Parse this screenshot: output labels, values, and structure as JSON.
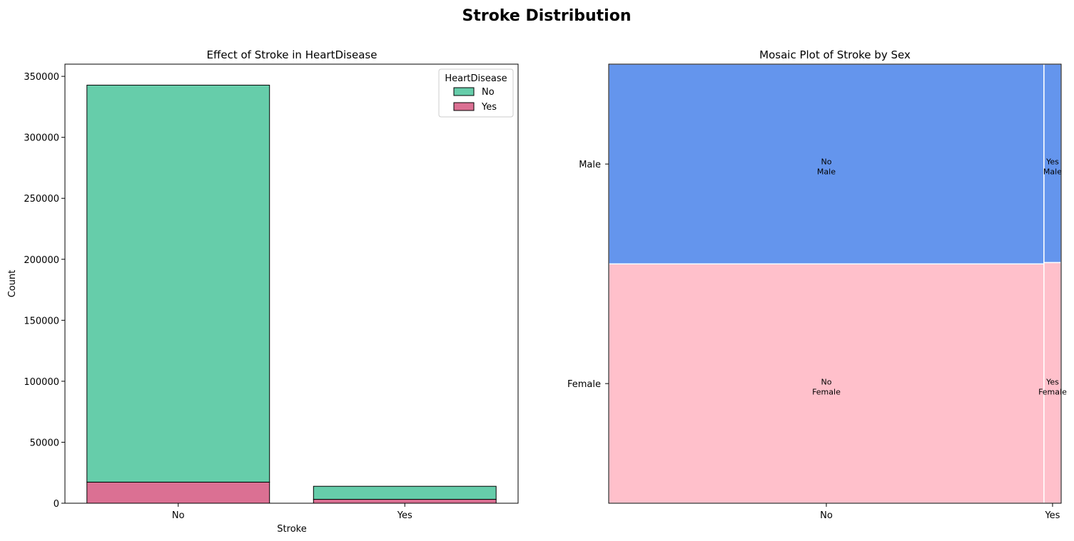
{
  "suptitle": "Stroke Distribution",
  "chart_data": [
    {
      "type": "bar",
      "stacked": true,
      "title": "Effect of Stroke in HeartDisease",
      "xlabel": "Stroke",
      "ylabel": "Count",
      "categories": [
        "No",
        "Yes"
      ],
      "ylim": [
        0,
        360000
      ],
      "yticks": [
        0,
        50000,
        100000,
        150000,
        200000,
        250000,
        300000,
        350000
      ],
      "legend": {
        "title": "HeartDisease",
        "placement": "top-right"
      },
      "series": [
        {
          "name": "No",
          "values": [
            325500,
            10700
          ],
          "color": "#66cdaa"
        },
        {
          "name": "Yes",
          "values": [
            17300,
            3200
          ],
          "color": "#db7093"
        }
      ]
    },
    {
      "type": "mosaic",
      "title": "Mosaic Plot of Stroke by Sex",
      "x_categories": [
        "No",
        "Yes"
      ],
      "y_categories": [
        "Male",
        "Female"
      ],
      "x_fractions": [
        0.962,
        0.038
      ],
      "male_fraction_by_x": [
        0.455,
        0.452
      ],
      "colors": {
        "Male": "#6495ed",
        "Female": "#ffc0cb"
      },
      "cells": [
        {
          "x": "No",
          "y": "Male",
          "label_top": "No",
          "label_bottom": "Male"
        },
        {
          "x": "Yes",
          "y": "Male",
          "label_top": "Yes",
          "label_bottom": "Male"
        },
        {
          "x": "No",
          "y": "Female",
          "label_top": "No",
          "label_bottom": "Female"
        },
        {
          "x": "Yes",
          "y": "Female",
          "label_top": "Yes",
          "label_bottom": "Female"
        }
      ]
    }
  ]
}
